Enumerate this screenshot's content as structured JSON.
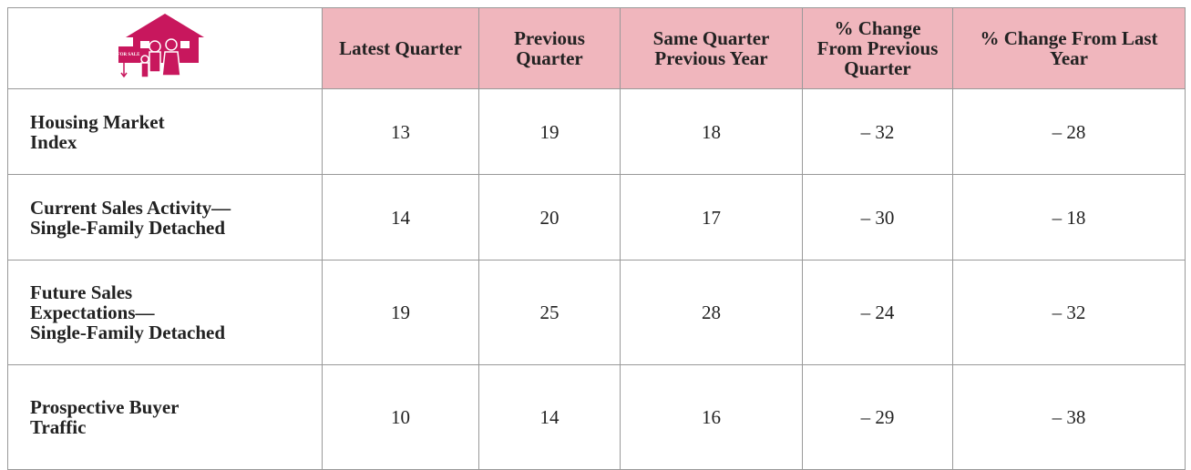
{
  "table": {
    "header": [
      "Latest Quarter",
      "Previous Quarter",
      "Same Quarter Previous Year",
      "% Change From Previous Quarter",
      "% Change From Last Year"
    ],
    "icon_label": "FOR SALE",
    "rows": [
      [
        "Housing Market\nIndex",
        "13",
        "19",
        "18",
        "– 32",
        "– 28"
      ],
      [
        "Current Sales Activity—\nSingle-Family Detached",
        "14",
        "20",
        "17",
        "– 30",
        "– 18"
      ],
      [
        "Future Sales\nExpectations—\nSingle-Family Detached",
        "19",
        "25",
        "28",
        "– 24",
        "– 32"
      ],
      [
        "Prospective Buyer\nTraffic",
        "10",
        "14",
        "16",
        "– 29",
        "– 38"
      ]
    ]
  }
}
